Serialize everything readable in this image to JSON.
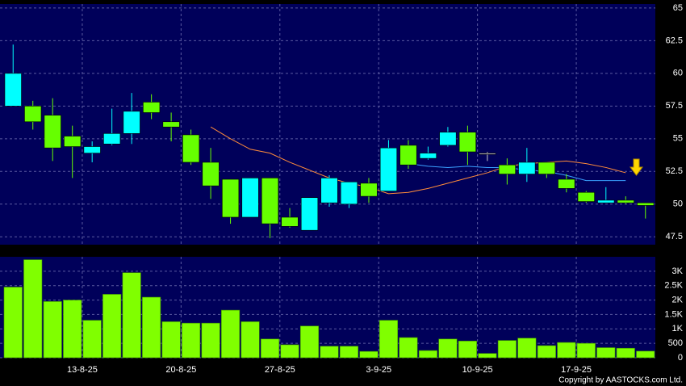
{
  "chart_data": [
    {
      "type": "candlestick",
      "categories": [
        null,
        null,
        null,
        null,
        "13-8-25",
        null,
        null,
        null,
        null,
        "20-8-25",
        null,
        null,
        null,
        null,
        "27-8-25",
        null,
        null,
        null,
        null,
        "3-9-25",
        null,
        null,
        null,
        null,
        "10-9-25",
        null,
        null,
        null,
        null,
        "17-9-25",
        null,
        null,
        null
      ],
      "open": [
        57.5,
        57.5,
        56.8,
        55.2,
        53.9,
        54.6,
        55.4,
        57.8,
        56.3,
        55.3,
        53.2,
        51.9,
        49.0,
        52.0,
        49.0,
        48.0,
        50.1,
        50.0,
        51.6,
        51.0,
        54.5,
        53.5,
        54.5,
        55.5,
        53.9,
        53.0,
        52.3,
        53.2,
        51.9,
        50.9,
        50.1,
        50.3,
        50.1
      ],
      "high": [
        62.2,
        57.9,
        58.1,
        56.0,
        54.8,
        57.3,
        58.5,
        58.4,
        57.0,
        55.7,
        54.3,
        51.9,
        52.0,
        52.0,
        49.7,
        50.5,
        52.2,
        51.7,
        52.0,
        54.9,
        54.9,
        54.4,
        55.9,
        56.0,
        54.0,
        53.5,
        54.3,
        53.2,
        52.3,
        51.0,
        51.3,
        50.6,
        50.1
      ],
      "low": [
        57.5,
        55.7,
        53.3,
        52.0,
        53.2,
        54.5,
        54.6,
        56.5,
        54.8,
        53.0,
        50.4,
        48.5,
        49.0,
        47.4,
        48.2,
        48.0,
        49.8,
        49.7,
        50.1,
        51.0,
        52.7,
        53.4,
        54.4,
        53.0,
        53.3,
        51.5,
        51.7,
        52.0,
        50.9,
        50.1,
        50.1,
        50.0,
        48.9
      ],
      "close": [
        60.0,
        56.3,
        54.3,
        54.4,
        54.4,
        55.4,
        57.1,
        57.0,
        55.9,
        53.2,
        51.4,
        49.0,
        52.0,
        48.5,
        48.3,
        50.5,
        52.0,
        51.7,
        50.6,
        54.3,
        53.0,
        53.9,
        55.5,
        54.0,
        53.9,
        52.3,
        53.2,
        52.3,
        51.2,
        50.2,
        50.3,
        50.1,
        49.9
      ],
      "up_color": "#00ffff",
      "down_color": "#66ff00",
      "flat_color": "#cccccc",
      "lines": [
        {
          "color": "#ff8c3a",
          "values": [
            null,
            null,
            null,
            null,
            null,
            null,
            null,
            null,
            null,
            null,
            55.9,
            55.0,
            54.2,
            53.9,
            53.2,
            52.6,
            52.0,
            51.6,
            51.3,
            50.8,
            50.9,
            51.2,
            51.6,
            52.0,
            52.4,
            52.9,
            53.1,
            53.2,
            53.3,
            53.1,
            52.8,
            52.4,
            null
          ]
        },
        {
          "color": "#3aa0ff",
          "values": [
            null,
            null,
            null,
            null,
            null,
            null,
            null,
            null,
            null,
            null,
            null,
            null,
            null,
            null,
            null,
            null,
            null,
            null,
            null,
            null,
            53.1,
            52.9,
            52.8,
            52.9,
            52.8,
            52.8,
            52.6,
            52.5,
            52.2,
            51.8,
            51.8,
            51.8,
            null
          ]
        }
      ],
      "ylim": [
        46.9,
        65.3
      ],
      "yticks": [
        47.5,
        50,
        52.5,
        55,
        57.5,
        60,
        62.5,
        65
      ],
      "grid": true
    },
    {
      "type": "bar",
      "values": [
        2450,
        3400,
        1950,
        2000,
        1300,
        2200,
        2950,
        2100,
        1250,
        1200,
        1200,
        1650,
        1250,
        650,
        450,
        1100,
        400,
        400,
        220,
        1300,
        700,
        250,
        650,
        580,
        150,
        600,
        680,
        420,
        530,
        500,
        350,
        330,
        230
      ],
      "color": "#80ff00",
      "ylim": [
        0,
        3500
      ],
      "yticks": [
        0,
        500,
        {
          "value": 1000,
          "label": "1K"
        },
        {
          "value": 1500,
          "label": "1.5K"
        },
        {
          "value": 2000,
          "label": "2K"
        },
        {
          "value": 2500,
          "label": "2.5K"
        },
        {
          "value": 3000,
          "label": "3K"
        }
      ],
      "grid": true,
      "copyright": "Copyright by AASTOCKS.com Ltd."
    }
  ]
}
